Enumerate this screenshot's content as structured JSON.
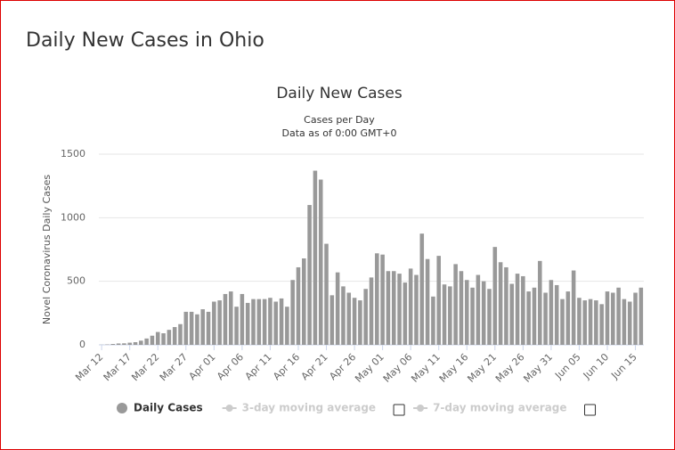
{
  "page_title": "Daily New Cases in Ohio",
  "chart_data": {
    "type": "bar",
    "title": "Daily New Cases",
    "subtitle": [
      "Cases per Day",
      "Data as of 0:00 GMT+0"
    ],
    "y_label": "Novel Coronavirus Daily Cases",
    "categories": [
      "Mar 12",
      null,
      null,
      null,
      null,
      "Mar 17",
      null,
      null,
      null,
      null,
      "Mar 22",
      null,
      null,
      null,
      null,
      "Mar 27",
      null,
      null,
      null,
      null,
      "Apr 01",
      null,
      null,
      null,
      null,
      "Apr 06",
      null,
      null,
      null,
      null,
      "Apr 11",
      null,
      null,
      null,
      null,
      "Apr 16",
      null,
      null,
      null,
      null,
      "Apr 21",
      null,
      null,
      null,
      null,
      "Apr 26",
      null,
      null,
      null,
      null,
      "May 01",
      null,
      null,
      null,
      null,
      "May 06",
      null,
      null,
      null,
      null,
      "May 11",
      null,
      null,
      null,
      null,
      "May 16",
      null,
      null,
      null,
      null,
      "May 21",
      null,
      null,
      null,
      null,
      "May 26",
      null,
      null,
      null,
      null,
      "May 31",
      null,
      null,
      null,
      null,
      "Jun 05",
      null,
      null,
      null,
      null,
      "Jun 10",
      null,
      null,
      null,
      null,
      "Jun 15",
      null
    ],
    "series": [
      {
        "name": "Daily Cases",
        "color": "#999999",
        "values": [
          1,
          3,
          7,
          11,
          12,
          17,
          21,
          33,
          50,
          72,
          101,
          91,
          118,
          140,
          163,
          260,
          260,
          240,
          280,
          260,
          340,
          350,
          400,
          420,
          300,
          400,
          330,
          360,
          360,
          360,
          370,
          340,
          365,
          300,
          510,
          610,
          680,
          1100,
          1370,
          1300,
          795,
          390,
          570,
          460,
          410,
          370,
          350,
          440,
          530,
          720,
          710,
          580,
          580,
          560,
          490,
          600,
          550,
          875,
          675,
          380,
          700,
          475,
          460,
          635,
          580,
          510,
          450,
          550,
          500,
          440,
          770,
          650,
          610,
          480,
          560,
          540,
          420,
          450,
          660,
          410,
          510,
          470,
          360,
          420,
          585,
          370,
          350,
          360,
          350,
          320,
          420,
          410,
          450,
          360,
          340,
          410,
          450
        ]
      },
      {
        "name": "3-day moving average",
        "color": "#cccccc",
        "hidden": true
      },
      {
        "name": "7-day moving average",
        "color": "#cccccc",
        "hidden": true
      }
    ],
    "ylim": [
      0,
      1500
    ],
    "yticks": [
      0,
      500,
      1000,
      1500
    ],
    "grid": true
  }
}
